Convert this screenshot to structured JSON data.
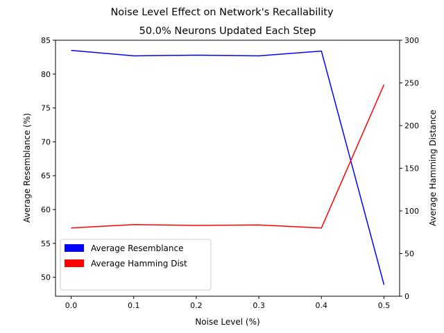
{
  "chart_data": {
    "type": "line",
    "suptitle": "Noise Level Effect on Network's Recallability",
    "title": "50.0% Neurons Updated Each Step",
    "xlabel": "Noise Level (%)",
    "ylabel_left": "Average Resemblance (%)",
    "ylabel_right": "Average Hamming Distance",
    "x": [
      0.0,
      0.1,
      0.2,
      0.3,
      0.4,
      0.5
    ],
    "x_ticks": [
      "0.0",
      "0.1",
      "0.2",
      "0.3",
      "0.4",
      "0.5"
    ],
    "xlim": [
      -0.025,
      0.525
    ],
    "ylim_left": [
      47.2,
      85.0
    ],
    "ylim_right": [
      0,
      300
    ],
    "y_ticks_left": [
      50,
      55,
      60,
      65,
      70,
      75,
      80,
      85
    ],
    "y_ticks_right": [
      0,
      50,
      100,
      150,
      200,
      250,
      300
    ],
    "series": [
      {
        "name": "Average Resemblance",
        "axis": "left",
        "color": "#0000ff",
        "values": [
          83.5,
          82.7,
          82.8,
          82.7,
          83.4,
          48.9
        ]
      },
      {
        "name": "Average Hamming Dist",
        "axis": "right",
        "color": "#ff0000",
        "values": [
          80,
          84,
          83,
          83.5,
          80,
          248
        ]
      }
    ],
    "legend": {
      "placement": "lower-left"
    },
    "grid": false
  }
}
